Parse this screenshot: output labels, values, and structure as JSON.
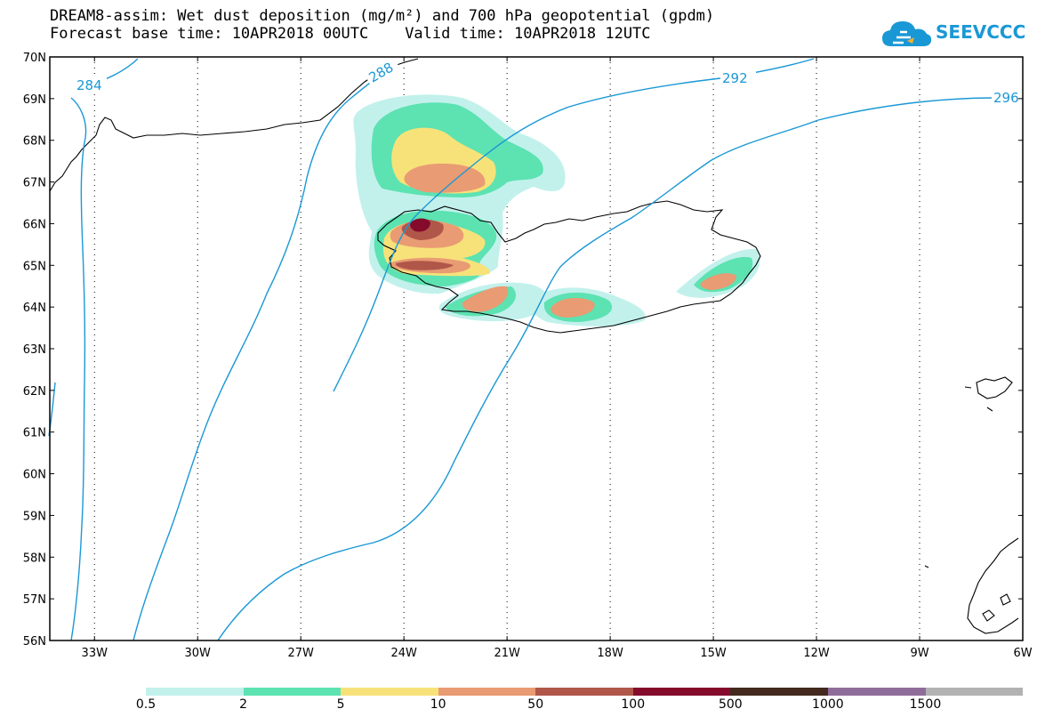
{
  "header": {
    "title": "DREAM8-assim: Wet dust deposition (mg/m²) and 700 hPa geopotential (gpdm)",
    "forecast_base": "Forecast base time: 10APR2018 00UTC",
    "valid_time": "Valid time: 10APR2018 12UTC"
  },
  "logo": {
    "text": "SEEVCCC",
    "icon": "cloud-logo-icon",
    "color": "#1a98d5"
  },
  "map": {
    "lat_labels": [
      "70N",
      "69N",
      "68N",
      "67N",
      "66N",
      "65N",
      "64N",
      "63N",
      "62N",
      "61N",
      "60N",
      "59N",
      "58N",
      "57N",
      "56N"
    ],
    "lon_labels": [
      "33W",
      "30W",
      "27W",
      "24W",
      "21W",
      "18W",
      "15W",
      "12W",
      "9W",
      "6W"
    ],
    "lat_range": [
      56,
      70
    ],
    "lon_range": [
      -34.3,
      -6
    ],
    "grid": "dotted",
    "contour_color": "#1a98d5",
    "contour_labels": [
      "284",
      "288",
      "292",
      "296"
    ],
    "coastline_color": "#000000"
  },
  "legend": {
    "levels": [
      "0.5",
      "2",
      "5",
      "10",
      "50",
      "100",
      "500",
      "1000",
      "1500"
    ],
    "colors": [
      "#c2f1ec",
      "#5de2b2",
      "#f7e27a",
      "#e99b73",
      "#b0574a",
      "#850b2c",
      "#43291e",
      "#8f6d9b",
      "#b2b2b2"
    ]
  }
}
